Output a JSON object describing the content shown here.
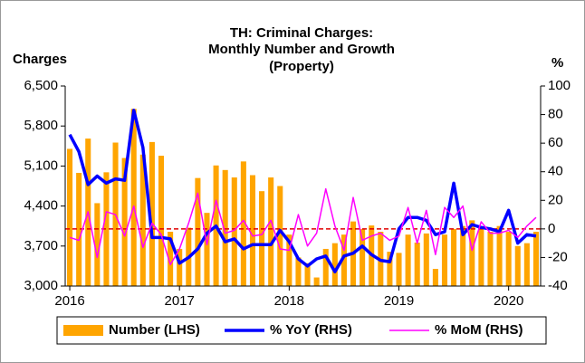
{
  "chart_data": {
    "type": "bar_line",
    "title": [
      "TH: Criminal Charges:",
      "Monthly Number and Growth",
      "(Property)"
    ],
    "y_label": "Charges",
    "y2_label": "%",
    "categories": [
      "2016",
      null,
      null,
      null,
      null,
      null,
      null,
      null,
      null,
      null,
      null,
      null,
      "2017",
      null,
      null,
      null,
      null,
      null,
      null,
      null,
      null,
      null,
      null,
      null,
      "2018",
      null,
      null,
      null,
      null,
      null,
      null,
      null,
      null,
      null,
      null,
      null,
      "2019",
      null,
      null,
      null,
      null,
      null,
      null,
      null,
      null,
      null,
      null,
      null,
      "2020",
      null,
      null,
      null
    ],
    "series": [
      {
        "name": "Number (LHS)",
        "type": "bar",
        "axis": "y",
        "color": "#ffa500",
        "values": [
          5400,
          4980,
          5580,
          4450,
          4990,
          5510,
          5240,
          6100,
          5300,
          5520,
          5280,
          3950,
          3650,
          4020,
          4890,
          4280,
          5110,
          5030,
          4900,
          5180,
          4940,
          4660,
          4900,
          4750,
          3900,
          3500,
          3400,
          3150,
          3650,
          3750,
          3900,
          4130,
          4000,
          4060,
          3950,
          3600,
          3580,
          3900,
          3760,
          3920,
          3300,
          3900,
          4000,
          4050,
          4150,
          4000,
          3950,
          4050,
          3950,
          3700,
          3750,
          3950
        ]
      },
      {
        "name": "% YoY (RHS)",
        "type": "line",
        "axis": "y2",
        "color": "#0000ff",
        "values": [
          66,
          54,
          31,
          37,
          32,
          35,
          34,
          83,
          57,
          -6,
          -6,
          -7,
          -24,
          -20,
          -14,
          -3,
          2,
          -9,
          -7,
          -14,
          -11,
          -11,
          -11,
          -1,
          -9,
          -21,
          -26,
          -21,
          -19,
          -30,
          -19,
          -17,
          -12,
          -18,
          -22,
          -23,
          0,
          8,
          8,
          6,
          -4,
          -2,
          32,
          -4,
          3,
          1,
          0,
          -2,
          13,
          -10,
          -4,
          -5
        ]
      },
      {
        "name": "% MoM (RHS)",
        "type": "line",
        "axis": "y2",
        "color": "#ff00ff",
        "values": [
          -6,
          -8,
          12,
          -20,
          12,
          10,
          -5,
          16,
          -13,
          4,
          -4,
          -25,
          -14,
          4,
          25,
          -11,
          20,
          -3,
          -1,
          6,
          -5,
          -4,
          6,
          -14,
          -15,
          10,
          -12,
          -3,
          28,
          2,
          -15,
          22,
          -8,
          -5,
          -3,
          -8,
          -5,
          15,
          -10,
          13,
          -18,
          15,
          8,
          16,
          -15,
          5,
          -3,
          -3,
          -1,
          -6,
          2,
          8
        ]
      }
    ],
    "ylim": [
      3000,
      6500
    ],
    "yticks": [
      {
        "value": 3000,
        "label": "3,000"
      },
      {
        "value": 3700,
        "label": "3,700"
      },
      {
        "value": 4400,
        "label": "4,400"
      },
      {
        "value": 5100,
        "label": "5,100"
      },
      {
        "value": 5800,
        "label": "5,800"
      },
      {
        "value": 6500,
        "label": "6,500"
      }
    ],
    "y2lim": [
      -40,
      100
    ],
    "y2ticks": [
      -40,
      -20,
      0,
      20,
      40,
      60,
      80,
      100
    ],
    "ref_line": {
      "value": 0,
      "axis": "y2",
      "color": "#e00000"
    },
    "legend": "bottom"
  }
}
